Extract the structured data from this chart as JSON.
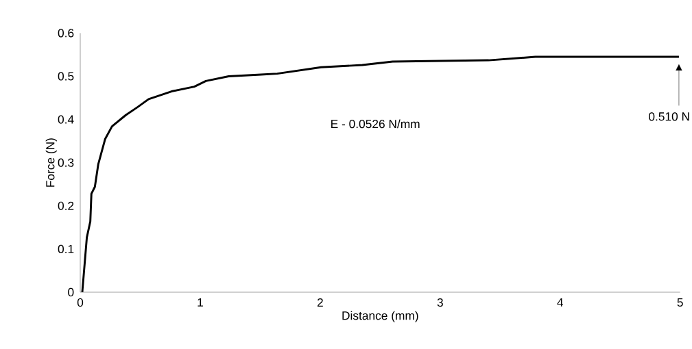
{
  "chart_data": {
    "type": "line",
    "xlabel": "Distance (mm)",
    "ylabel": "Force (N)",
    "annotations": [
      "E - 0.0526 N/mm",
      "0.510 N"
    ],
    "series": [
      {
        "color": "#000000",
        "x": [
          0.017,
          0.055,
          0.084,
          0.093,
          0.122,
          0.15,
          0.208,
          0.265,
          0.379,
          0.475,
          0.57,
          0.761,
          0.951,
          1.047,
          1.237,
          1.505,
          1.642,
          2.008,
          2.351,
          2.603,
          3.404,
          3.793,
          4.251,
          4.99
        ],
        "values": [
          0,
          0.127,
          0.164,
          0.228,
          0.244,
          0.296,
          0.355,
          0.384,
          0.41,
          0.428,
          0.447,
          0.465,
          0.476,
          0.489,
          0.5,
          0.504,
          0.506,
          0.521,
          0.526,
          0.534,
          0.537,
          0.545,
          0.545,
          0.545
        ]
      }
    ],
    "xlim": [
      0,
      5
    ],
    "ylim": [
      0,
      0.6
    ],
    "xticks": [
      0,
      1,
      2,
      3,
      4,
      5
    ],
    "yticks": [
      0,
      0.1,
      0.2,
      0.3,
      0.4,
      0.5,
      0.6
    ],
    "grid": false,
    "legend": false,
    "marker": "none",
    "line_style": "solid"
  }
}
